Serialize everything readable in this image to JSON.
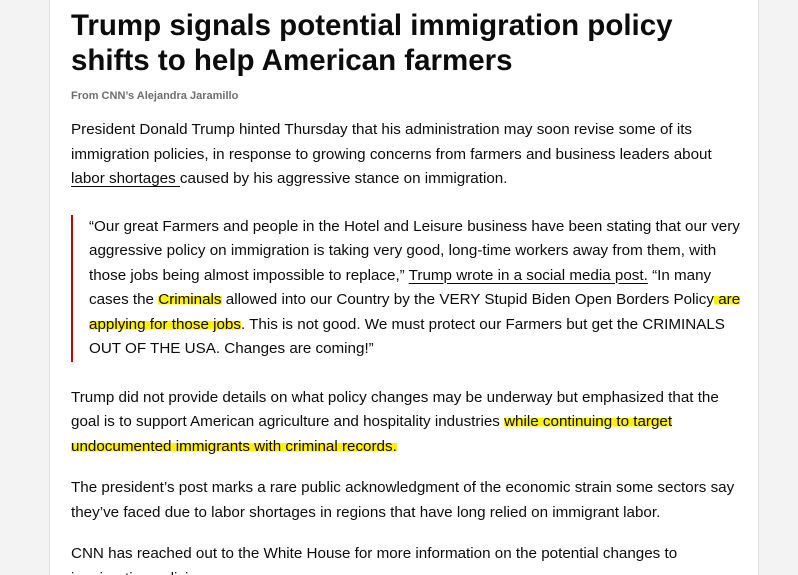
{
  "article": {
    "headline": "Trump signals potential immigration policy shifts to help American farmers",
    "byline": "From CNN’s Alejandra Jaramillo",
    "p1": {
      "before": "President Donald Trump hinted Thursday that his administration may soon revise some of its immigration policies, in response to growing concerns from farmers and business leaders about ",
      "link": "labor shortages ",
      "after": "caused by his aggressive stance on immigration."
    },
    "quote": {
      "part1": "“Our great Farmers and people in the Hotel and Leisure business have been stating that our very aggressive policy on immigration is taking very good, long-time workers away from them, with those jobs being almost impossible to replace,” ",
      "link": "Trump wrote in a social media post.",
      "part2": " “In many cases the ",
      "hl1": "Criminals",
      "part3": " allowed into our Country by the VERY Stupid Biden Open Borders Policy",
      "hl2": " are applying for those jobs",
      "part4": ". This is not good. We must protect our Farmers but get the CRIMINALS OUT OF THE USA. Changes are coming!”"
    },
    "p3": {
      "before": "Trump did not provide details on what policy changes may be underway but emphasized that the goal is to support American agriculture and hospitality industries ",
      "hl": "while continuing to target undocumented immigrants with criminal records."
    },
    "p4": "The president’s post marks a rare public acknowledgment of the economic strain some sectors say they’ve faced due to labor shortages in regions that have long relied on immigrant labor.",
    "p5": "CNN has reached out to the White House for more information on the potential changes to immigration policies."
  },
  "colors": {
    "quote_border": "#cc0000",
    "highlight": "#fff200"
  }
}
